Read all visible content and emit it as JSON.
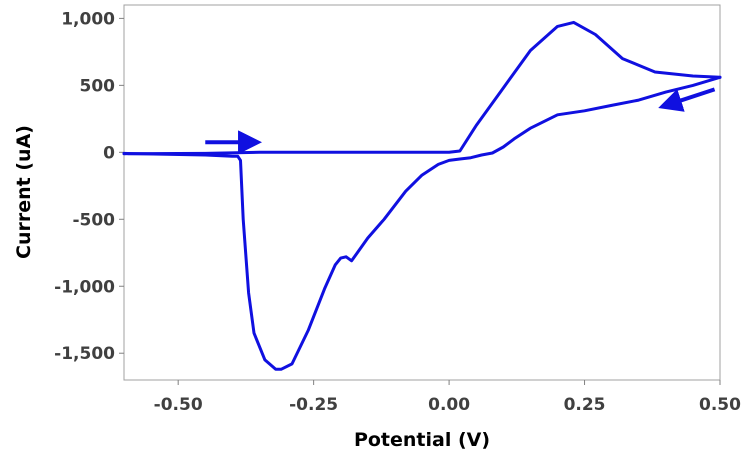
{
  "chart_data": {
    "type": "line",
    "title": "",
    "xlabel": "Potential (V)",
    "ylabel": "Current (uA)",
    "xlim": [
      -0.6,
      0.5
    ],
    "ylim": [
      -1700,
      1100
    ],
    "x_ticks": [
      {
        "value": -0.5,
        "label": "-0.50"
      },
      {
        "value": -0.25,
        "label": "-0.25"
      },
      {
        "value": 0.0,
        "label": "0.00"
      },
      {
        "value": 0.25,
        "label": "0.25"
      },
      {
        "value": 0.5,
        "label": "0.50"
      }
    ],
    "y_ticks": [
      {
        "value": 1000,
        "label": "1,000"
      },
      {
        "value": 500,
        "label": "500"
      },
      {
        "value": 0,
        "label": "0"
      },
      {
        "value": -500,
        "label": "-500"
      },
      {
        "value": -1000,
        "label": "-1,000"
      },
      {
        "value": -1500,
        "label": "-1,500"
      }
    ],
    "grid": false,
    "legend": "none",
    "color": "#1010e0",
    "series": [
      {
        "x": [
          -0.6,
          -0.45,
          -0.35,
          -0.2,
          0.0,
          0.02,
          0.05,
          0.1,
          0.15,
          0.2,
          0.23,
          0.27,
          0.32,
          0.38,
          0.45,
          0.5
        ],
        "y": [
          -10,
          -8,
          0,
          0,
          0,
          10,
          200,
          480,
          760,
          940,
          970,
          880,
          700,
          600,
          570,
          560
        ]
      },
      {
        "x": [
          0.5,
          0.45,
          0.4,
          0.35,
          0.3,
          0.25,
          0.2,
          0.15,
          0.12,
          0.1,
          0.08,
          0.06,
          0.04,
          0.02,
          0.0,
          -0.02,
          -0.05,
          -0.08,
          -0.12,
          -0.15,
          -0.18,
          -0.19,
          -0.2,
          -0.21,
          -0.23,
          -0.26,
          -0.29,
          -0.31,
          -0.32,
          -0.34,
          -0.36,
          -0.37,
          -0.38,
          -0.385,
          -0.39,
          -0.4,
          -0.42,
          -0.45,
          -0.6
        ],
        "y": [
          560,
          500,
          450,
          390,
          350,
          310,
          280,
          180,
          100,
          40,
          -5,
          -20,
          -40,
          -50,
          -60,
          -90,
          -170,
          -290,
          -500,
          -640,
          -810,
          -780,
          -790,
          -840,
          -1020,
          -1330,
          -1580,
          -1620,
          -1620,
          -1550,
          -1350,
          -1050,
          -500,
          -60,
          -30,
          -30,
          -25,
          -20,
          -8
        ]
      }
    ],
    "annotations": [
      {
        "type": "arrow",
        "direction": "right",
        "x_from": -0.45,
        "x_to": -0.36,
        "y": 75
      },
      {
        "type": "arrow",
        "direction": "left",
        "x_from": 0.49,
        "x_to": 0.4,
        "y_from": 470,
        "y_to": 350
      }
    ]
  }
}
